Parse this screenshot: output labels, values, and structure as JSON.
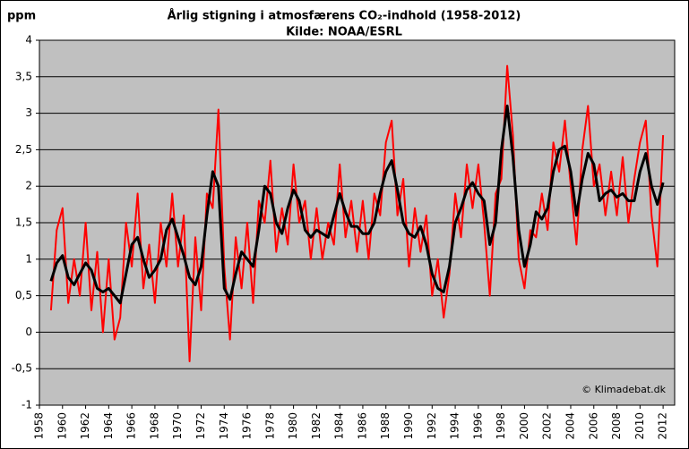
{
  "chart_data": {
    "type": "line",
    "title": "Årlig stigning i atmosfærens CO₂-indhold (1958-2012)",
    "subtitle": "Kilde: NOAA/ESRL",
    "y_label": "ppm",
    "annotation": "© Klimadebat.dk",
    "xlim": [
      1958,
      2013
    ],
    "ylim": [
      -1,
      4
    ],
    "xticks": [
      1958,
      1960,
      1962,
      1964,
      1966,
      1968,
      1970,
      1972,
      1974,
      1976,
      1978,
      1980,
      1982,
      1984,
      1986,
      1988,
      1990,
      1992,
      1994,
      1996,
      1998,
      2000,
      2002,
      2004,
      2006,
      2008,
      2010,
      2012
    ],
    "yticks": [
      -1,
      {
        "value": -0.5,
        "label": "-0,5"
      },
      0,
      {
        "value": 0.5,
        "label": "0,5"
      },
      1,
      {
        "value": 1.5,
        "label": "1,5"
      },
      2,
      {
        "value": 2.5,
        "label": "2,5"
      },
      3,
      {
        "value": 3.5,
        "label": "3,5"
      },
      4
    ],
    "grid": true,
    "x": [
      1959,
      1959.5,
      1960,
      1960.5,
      1961,
      1961.5,
      1962,
      1962.5,
      1963,
      1963.5,
      1964,
      1964.5,
      1965,
      1965.5,
      1966,
      1966.5,
      1967,
      1967.5,
      1968,
      1968.5,
      1969,
      1969.5,
      1970,
      1970.5,
      1971,
      1971.5,
      1972,
      1972.5,
      1973,
      1973.5,
      1974,
      1974.5,
      1975,
      1975.5,
      1976,
      1976.5,
      1977,
      1977.5,
      1978,
      1978.5,
      1979,
      1979.5,
      1980,
      1980.5,
      1981,
      1981.5,
      1982,
      1982.5,
      1983,
      1983.5,
      1984,
      1984.5,
      1985,
      1985.5,
      1986,
      1986.5,
      1987,
      1987.5,
      1988,
      1988.5,
      1989,
      1989.5,
      1990,
      1990.5,
      1991,
      1991.5,
      1992,
      1992.5,
      1993,
      1993.5,
      1994,
      1994.5,
      1995,
      1995.5,
      1996,
      1996.5,
      1997,
      1997.5,
      1998,
      1998.5,
      1999,
      1999.5,
      2000,
      2000.5,
      2001,
      2001.5,
      2002,
      2002.5,
      2003,
      2003.5,
      2004,
      2004.5,
      2005,
      2005.5,
      2006,
      2006.5,
      2007,
      2007.5,
      2008,
      2008.5,
      2009,
      2009.5,
      2010,
      2010.5,
      2011,
      2011.5,
      2012
    ],
    "series": [
      {
        "color": "#ff0000",
        "width": 2,
        "values": [
          0.3,
          1.4,
          1.7,
          0.4,
          1.0,
          0.5,
          1.5,
          0.3,
          1.1,
          0.0,
          1.0,
          -0.1,
          0.2,
          1.5,
          0.9,
          1.9,
          0.6,
          1.2,
          0.4,
          1.5,
          0.9,
          1.9,
          0.9,
          1.6,
          -0.4,
          1.3,
          0.3,
          1.9,
          1.7,
          3.05,
          0.9,
          -0.1,
          1.3,
          0.6,
          1.5,
          0.4,
          1.8,
          1.5,
          2.35,
          1.1,
          1.7,
          1.2,
          2.3,
          1.5,
          1.8,
          1.0,
          1.7,
          1.0,
          1.5,
          1.2,
          2.3,
          1.3,
          1.8,
          1.1,
          1.8,
          1.0,
          1.9,
          1.6,
          2.6,
          2.9,
          1.6,
          2.1,
          0.9,
          1.7,
          1.1,
          1.6,
          0.5,
          1.0,
          0.2,
          0.8,
          1.9,
          1.3,
          2.3,
          1.7,
          2.3,
          1.5,
          0.5,
          1.9,
          2.1,
          3.65,
          2.7,
          1.0,
          0.6,
          1.4,
          1.3,
          1.9,
          1.4,
          2.6,
          2.2,
          2.9,
          2.0,
          1.2,
          2.5,
          3.1,
          2.0,
          2.3,
          1.6,
          2.2,
          1.6,
          2.4,
          1.5,
          2.1,
          2.6,
          2.9,
          1.6,
          0.9,
          2.7
        ]
      },
      {
        "color": "#000000",
        "width": 3,
        "values": [
          0.7,
          0.95,
          1.05,
          0.75,
          0.65,
          0.8,
          0.95,
          0.85,
          0.6,
          0.55,
          0.6,
          0.5,
          0.4,
          0.8,
          1.2,
          1.3,
          1.0,
          0.75,
          0.85,
          1.0,
          1.4,
          1.55,
          1.3,
          1.05,
          0.75,
          0.65,
          0.9,
          1.6,
          2.2,
          2.0,
          0.6,
          0.45,
          0.8,
          1.1,
          1.0,
          0.9,
          1.4,
          2.0,
          1.9,
          1.5,
          1.35,
          1.7,
          1.95,
          1.8,
          1.4,
          1.3,
          1.4,
          1.35,
          1.3,
          1.6,
          1.9,
          1.65,
          1.45,
          1.45,
          1.35,
          1.35,
          1.5,
          1.9,
          2.2,
          2.35,
          1.95,
          1.5,
          1.35,
          1.3,
          1.45,
          1.2,
          0.8,
          0.6,
          0.55,
          0.9,
          1.5,
          1.7,
          1.95,
          2.05,
          1.9,
          1.8,
          1.2,
          1.5,
          2.5,
          3.1,
          2.4,
          1.4,
          0.9,
          1.2,
          1.65,
          1.55,
          1.7,
          2.2,
          2.5,
          2.55,
          2.2,
          1.6,
          2.1,
          2.45,
          2.3,
          1.8,
          1.9,
          1.95,
          1.85,
          1.9,
          1.8,
          1.8,
          2.2,
          2.45,
          2.0,
          1.75,
          2.05
        ]
      }
    ]
  }
}
